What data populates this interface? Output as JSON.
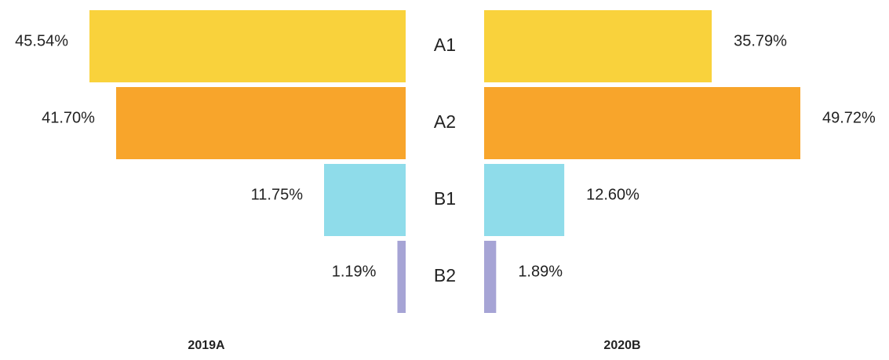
{
  "chart_data": {
    "type": "butterfly_bar",
    "categories": [
      "A1",
      "A2",
      "B1",
      "B2"
    ],
    "colors": [
      "#f9d23c",
      "#f8a52b",
      "#8fdcea",
      "#a6a4d5"
    ],
    "series": [
      {
        "name": "2019A",
        "values": [
          45.54,
          41.7,
          11.75,
          1.19
        ],
        "value_labels": [
          "45.54%",
          "41.70%",
          "11.75%",
          "1.19%"
        ]
      },
      {
        "name": "2020B",
        "values": [
          35.79,
          49.72,
          12.6,
          1.89
        ],
        "value_labels": [
          "35.79%",
          "49.72%",
          "12.60%",
          "1.89%"
        ]
      }
    ]
  }
}
